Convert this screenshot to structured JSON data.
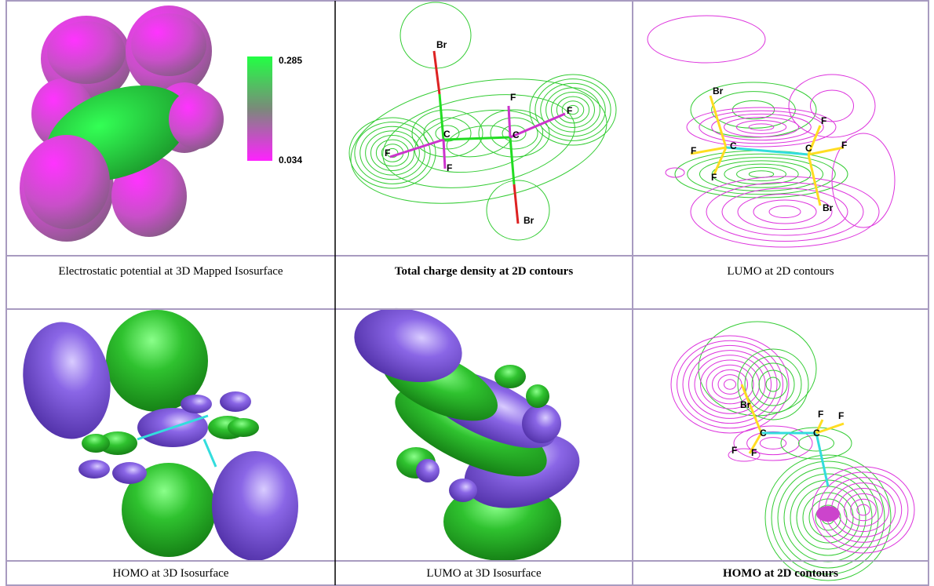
{
  "panels": [
    {
      "caption": "Electrostatic potential at 3D Mapped Isosurface",
      "caption_bold": false,
      "labels": [
        0.285,
        0.034
      ]
    },
    {
      "caption": "Total charge density at 2D contours",
      "caption_bold": true,
      "labels": [
        "Br",
        "C",
        "C",
        "F",
        "F",
        "F",
        "F",
        "Br"
      ]
    },
    {
      "caption": "LUMO at 2D contours",
      "caption_bold": false,
      "labels": [
        "Br",
        "C",
        "C",
        "F",
        "F",
        "F",
        "F",
        "Br"
      ]
    },
    {
      "caption": "HOMO at 3D Isosurface",
      "caption_bold": false,
      "labels": []
    },
    {
      "caption": "LUMO at 3D Isosurface",
      "caption_bold": false,
      "labels": []
    },
    {
      "caption": "HOMO at 2D contours",
      "caption_bold": true,
      "labels": [
        "Br",
        "C",
        "C",
        "F",
        "F",
        "F",
        "F"
      ]
    }
  ]
}
